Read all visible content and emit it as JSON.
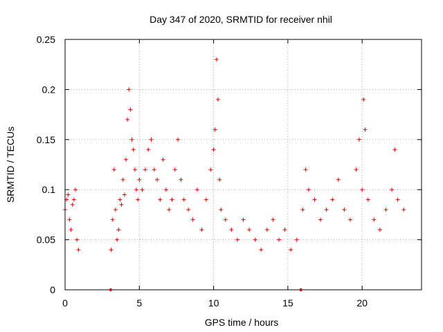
{
  "chart_data": {
    "type": "scatter",
    "title": "Day 347 of 2020, SRMTID for receiver nhil",
    "xlabel": "GPS time / hours",
    "ylabel": "SRMTID / TECUs",
    "xlim": [
      0,
      24
    ],
    "ylim": [
      0,
      0.25
    ],
    "xticks": [
      "0",
      "5",
      "10",
      "15",
      "20"
    ],
    "yticks": [
      "0",
      "0.05",
      "0.1",
      "0.15",
      "0.2",
      "0.25"
    ],
    "grid": true,
    "marker": "+",
    "color": "#e00000",
    "series": [
      {
        "name": "SRMTID",
        "x": [
          0.0,
          0.1,
          0.2,
          0.3,
          0.4,
          0.5,
          0.6,
          0.7,
          0.8,
          0.9,
          3.1,
          3.2,
          3.3,
          3.4,
          3.5,
          3.6,
          3.7,
          3.8,
          3.9,
          4.0,
          4.1,
          4.2,
          4.3,
          4.4,
          4.5,
          4.6,
          4.7,
          4.8,
          4.9,
          5.0,
          5.2,
          5.4,
          5.6,
          5.8,
          6.0,
          6.2,
          6.4,
          6.6,
          6.8,
          7.0,
          7.2,
          7.4,
          7.6,
          7.8,
          8.0,
          8.3,
          8.6,
          8.9,
          9.2,
          9.5,
          9.8,
          10.0,
          10.1,
          10.2,
          10.3,
          10.4,
          10.5,
          10.8,
          11.2,
          11.6,
          12.0,
          12.4,
          12.8,
          13.2,
          13.6,
          14.0,
          14.4,
          14.8,
          15.2,
          15.6,
          16.0,
          16.2,
          16.4,
          16.8,
          17.2,
          17.6,
          18.0,
          18.4,
          18.8,
          19.2,
          19.6,
          19.8,
          20.0,
          20.1,
          20.2,
          20.4,
          20.8,
          21.2,
          21.6,
          22.0,
          22.2,
          22.4,
          22.8
        ],
        "values": [
          0.08,
          0.09,
          0.095,
          0.07,
          0.06,
          0.085,
          0.09,
          0.1,
          0.05,
          0.04,
          0.04,
          0.07,
          0.12,
          0.08,
          0.05,
          0.06,
          0.09,
          0.085,
          0.11,
          0.095,
          0.13,
          0.17,
          0.2,
          0.18,
          0.15,
          0.14,
          0.12,
          0.1,
          0.09,
          0.11,
          0.1,
          0.12,
          0.14,
          0.15,
          0.12,
          0.11,
          0.09,
          0.13,
          0.1,
          0.08,
          0.09,
          0.12,
          0.15,
          0.11,
          0.09,
          0.08,
          0.07,
          0.1,
          0.06,
          0.09,
          0.12,
          0.14,
          0.16,
          0.23,
          0.19,
          0.11,
          0.08,
          0.07,
          0.06,
          0.05,
          0.07,
          0.06,
          0.05,
          0.04,
          0.06,
          0.07,
          0.05,
          0.06,
          0.04,
          0.05,
          0.08,
          0.12,
          0.1,
          0.09,
          0.07,
          0.08,
          0.09,
          0.11,
          0.08,
          0.07,
          0.12,
          0.15,
          0.1,
          0.19,
          0.16,
          0.09,
          0.07,
          0.06,
          0.08,
          0.1,
          0.14,
          0.09,
          0.08
        ]
      }
    ],
    "off_periods": [
      {
        "start": 3.0,
        "end": 3.1
      },
      {
        "start": 15.8,
        "end": 15.95
      }
    ]
  }
}
